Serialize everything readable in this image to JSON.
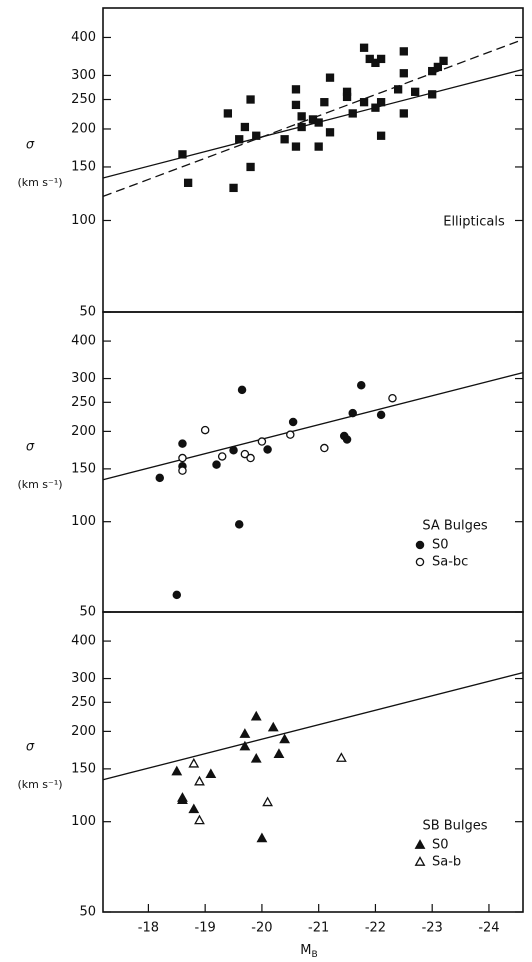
{
  "chart_data": [
    {
      "type": "scatter",
      "ylabel": "σ",
      "ylabel_unit": "(km s⁻¹)",
      "annotation": "Ellipticals",
      "xlim": [
        -17.2,
        -24.6
      ],
      "ylim": [
        50,
        500
      ],
      "log_y": true,
      "yticks": [
        50,
        100,
        150,
        200,
        250,
        300,
        400
      ],
      "series": [
        {
          "marker": "square",
          "filled": true,
          "color": "#111111",
          "x": [
            -18.6,
            -18.7,
            -19.5,
            -19.4,
            -19.6,
            -19.7,
            -19.8,
            -19.8,
            -19.9,
            -20.4,
            -20.6,
            -20.6,
            -20.6,
            -20.7,
            -20.7,
            -20.9,
            -21.0,
            -21.0,
            -21.1,
            -21.2,
            -21.2,
            -21.5,
            -21.5,
            -21.6,
            -21.8,
            -21.8,
            -21.9,
            -22.0,
            -22.0,
            -22.1,
            -22.1,
            -22.1,
            -22.4,
            -22.5,
            -22.5,
            -22.5,
            -22.7,
            -23.0,
            -23.0,
            -23.1,
            -23.2
          ],
          "values": [
            165,
            133,
            128,
            225,
            185,
            203,
            250,
            150,
            190,
            185,
            240,
            270,
            175,
            203,
            220,
            215,
            210,
            175,
            245,
            295,
            195,
            265,
            255,
            225,
            245,
            370,
            340,
            330,
            235,
            190,
            340,
            245,
            270,
            305,
            360,
            225,
            265,
            310,
            260,
            320,
            335
          ]
        }
      ],
      "fits": [
        {
          "dash": false,
          "color": "#111111",
          "x": [
            -17.2,
            -24.6
          ],
          "values": [
            138,
            314
          ]
        },
        {
          "dash": true,
          "color": "#111111",
          "x": [
            -17.2,
            -24.6
          ],
          "values": [
            120,
            394
          ]
        }
      ]
    },
    {
      "type": "scatter",
      "ylabel": "σ",
      "ylabel_unit": "(km s⁻¹)",
      "annotation": "SA Bulges",
      "xlim": [
        -17.2,
        -24.6
      ],
      "ylim": [
        50,
        500
      ],
      "log_y": true,
      "yticks": [
        50,
        100,
        150,
        200,
        250,
        300,
        400
      ],
      "series": [
        {
          "name": "S0",
          "marker": "circle",
          "filled": true,
          "color": "#111111",
          "x": [
            -18.2,
            -18.6,
            -18.6,
            -18.5,
            -19.2,
            -19.5,
            -19.6,
            -19.65,
            -20.1,
            -20.55,
            -21.45,
            -21.5,
            -21.6,
            -21.75,
            -22.1
          ],
          "values": [
            140,
            153,
            182,
            57,
            155,
            173,
            98,
            275,
            174,
            215,
            193,
            188,
            230,
            285,
            227
          ]
        },
        {
          "name": "Sa-bc",
          "marker": "circle",
          "filled": false,
          "color": "#111111",
          "x": [
            -18.6,
            -18.6,
            -19.0,
            -19.3,
            -19.7,
            -19.8,
            -20.0,
            -20.5,
            -21.1,
            -22.3
          ],
          "values": [
            163,
            148,
            202,
            165,
            168,
            163,
            185,
            195,
            176,
            258
          ]
        }
      ],
      "fits": [
        {
          "dash": false,
          "color": "#111111",
          "x": [
            -17.2,
            -24.6
          ],
          "values": [
            138,
            314
          ]
        }
      ]
    },
    {
      "type": "scatter",
      "ylabel": "σ",
      "ylabel_unit": "(km s⁻¹)",
      "annotation": "SB Bulges",
      "xlim": [
        -17.2,
        -24.6
      ],
      "ylim": [
        50,
        500
      ],
      "log_y": true,
      "yticks": [
        50,
        100,
        150,
        200,
        250,
        300,
        400
      ],
      "xticks": [
        -18,
        -19,
        -20,
        -21,
        -22,
        -23,
        -24
      ],
      "xlabel": "M",
      "xlabel_subscript": "B",
      "series": [
        {
          "name": "S0",
          "marker": "triangle",
          "filled": true,
          "color": "#111111",
          "x": [
            -18.5,
            -18.6,
            -18.6,
            -18.8,
            -19.1,
            -19.7,
            -19.7,
            -19.9,
            -19.9,
            -20.0,
            -20.2,
            -20.3,
            -20.4
          ],
          "values": [
            147,
            118,
            120,
            110,
            144,
            178,
            196,
            224,
            162,
            88,
            206,
            168,
            188
          ]
        },
        {
          "name": "Sa-b",
          "marker": "triangle",
          "filled": false,
          "color": "#111111",
          "x": [
            -18.8,
            -18.9,
            -18.9,
            -20.1,
            -21.4
          ],
          "values": [
            156,
            136,
            101,
            116,
            163
          ]
        }
      ],
      "fits": [
        {
          "dash": false,
          "color": "#111111",
          "x": [
            -17.2,
            -24.6
          ],
          "values": [
            138,
            314
          ]
        }
      ]
    }
  ]
}
